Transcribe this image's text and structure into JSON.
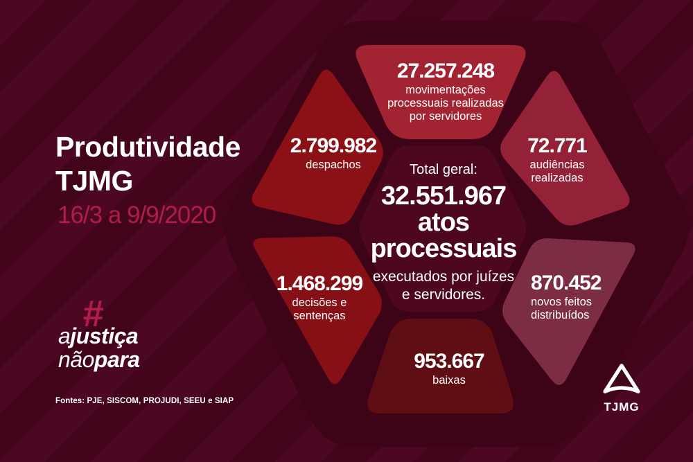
{
  "header": {
    "title_line1": "Produtividade",
    "title_line2": "TJMG",
    "date_range": "16/3 a 9/9/2020"
  },
  "campaign": {
    "hashtag": "#",
    "line1_light": "a",
    "line1_bold": "justiça",
    "line2_light": "não",
    "line2_bold": "para"
  },
  "sources": "Fontes: PJE, SISCOM, PROJUDI, SEEU e SIAP",
  "total": {
    "label": "Total geral:",
    "big": "32.551.967\natos\nprocessuais",
    "description": "executados por juízes\ne servidores."
  },
  "stats": {
    "movimentacoes": {
      "value": "27.257.248",
      "label": "movimentações\nprocessuais realizadas\npor servidores"
    },
    "despachos": {
      "value": "2.799.982",
      "label": "despachos"
    },
    "audiencias": {
      "value": "72.771",
      "label": "audiências\nrealizadas"
    },
    "decisoes": {
      "value": "1.468.299",
      "label": "decisões e\nsentenças"
    },
    "novos_feitos": {
      "value": "870.452",
      "label": "novos feitos\ndistribuídos"
    },
    "baixas": {
      "value": "953.667",
      "label": "baixas"
    }
  },
  "logo": {
    "text": "TJMG"
  },
  "colors": {
    "background": "#42041b",
    "stripe": "#4c0722",
    "backdrop": "#3d0417",
    "center_hexagon": "#4d0820",
    "accent": "#b01d49",
    "text": "#ffffff",
    "petals": {
      "movimentacoes": "#a22433",
      "despachos": "#8b1116",
      "audiencias": "#932137",
      "decisoes": "#861015",
      "novos_feitos": "#7d2d43",
      "baixas": "#5f0e13"
    }
  },
  "chart_data": {
    "type": "table",
    "title": "Produtividade TJMG",
    "period": "16/3 a 9/9/2020",
    "total": {
      "label": "Total geral:",
      "value": 32551967,
      "unit": "atos processuais",
      "note": "executados por juízes e servidores."
    },
    "items": [
      {
        "label": "movimentações processuais realizadas por servidores",
        "value": 27257248
      },
      {
        "label": "despachos",
        "value": 2799982
      },
      {
        "label": "audiências realizadas",
        "value": 72771
      },
      {
        "label": "decisões e sentenças",
        "value": 1468299
      },
      {
        "label": "novos feitos distribuídos",
        "value": 870452
      },
      {
        "label": "baixas",
        "value": 953667
      }
    ],
    "sources": "PJE, SISCOM, PROJUDI, SEEU e SIAP"
  }
}
